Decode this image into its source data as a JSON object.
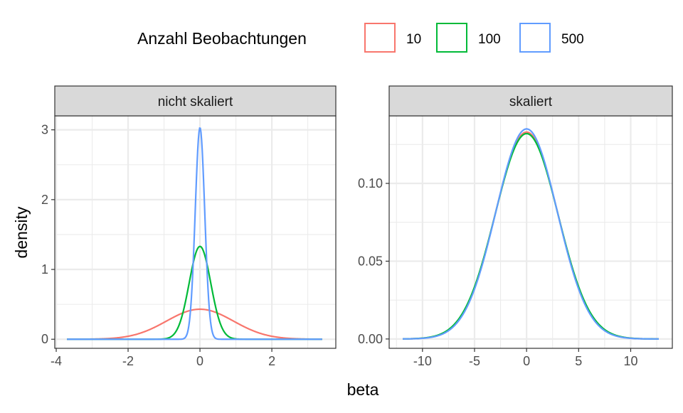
{
  "chart_data": {
    "type": "line",
    "xlabel": "beta",
    "ylabel": "density",
    "legend": {
      "title": "Anzahl Beobachtungen",
      "placement": "top",
      "entries": [
        {
          "label": "10",
          "color": "#F8766D"
        },
        {
          "label": "100",
          "color": "#00BA38"
        },
        {
          "label": "500",
          "color": "#619CFF"
        }
      ]
    },
    "panels": [
      {
        "title": "nicht skaliert",
        "xlim": [
          -4.04,
          3.78
        ],
        "ylim": [
          -0.13,
          3.2
        ],
        "xticks": [
          -4,
          -2,
          0,
          2
        ],
        "xtick_labels": [
          "-4",
          "-2",
          "0",
          "2"
        ],
        "yticks": [
          0,
          1,
          2,
          3
        ],
        "ytick_labels": [
          "0",
          "1",
          "2",
          "3"
        ],
        "series": [
          {
            "name": "10",
            "color": "#F8766D",
            "mean": 0.0,
            "sd": 0.93,
            "x_range": [
              -3.7,
              3.4
            ],
            "peak": 0.43
          },
          {
            "name": "100",
            "color": "#00BA38",
            "mean": 0.0,
            "sd": 0.3,
            "x_range": [
              -3.7,
              3.4
            ],
            "peak": 1.33
          },
          {
            "name": "500",
            "color": "#619CFF",
            "mean": 0.0,
            "sd": 0.132,
            "x_range": [
              -3.7,
              3.4
            ],
            "peak": 3.03
          }
        ]
      },
      {
        "title": "skaliert",
        "xlim": [
          -13.2,
          14.0
        ],
        "ylim": [
          -0.006,
          0.1434
        ],
        "xticks": [
          -10,
          -5,
          0,
          5,
          10
        ],
        "xtick_labels": [
          "-10",
          "-5",
          "0",
          "5",
          "10"
        ],
        "yticks": [
          0,
          0.05,
          0.1
        ],
        "ytick_labels": [
          "0.00",
          "0.05",
          "0.10"
        ],
        "series": [
          {
            "name": "10",
            "color": "#F8766D",
            "mean": 0.0,
            "sd": 3.0,
            "x_range": [
              -11.9,
              12.7
            ],
            "peak": 0.133
          },
          {
            "name": "100",
            "color": "#00BA38",
            "mean": 0.0,
            "sd": 3.02,
            "x_range": [
              -11.9,
              12.7
            ],
            "peak": 0.132
          },
          {
            "name": "500",
            "color": "#619CFF",
            "mean": 0.0,
            "sd": 2.95,
            "x_range": [
              -11.9,
              12.7
            ],
            "peak": 0.135
          }
        ]
      }
    ]
  }
}
